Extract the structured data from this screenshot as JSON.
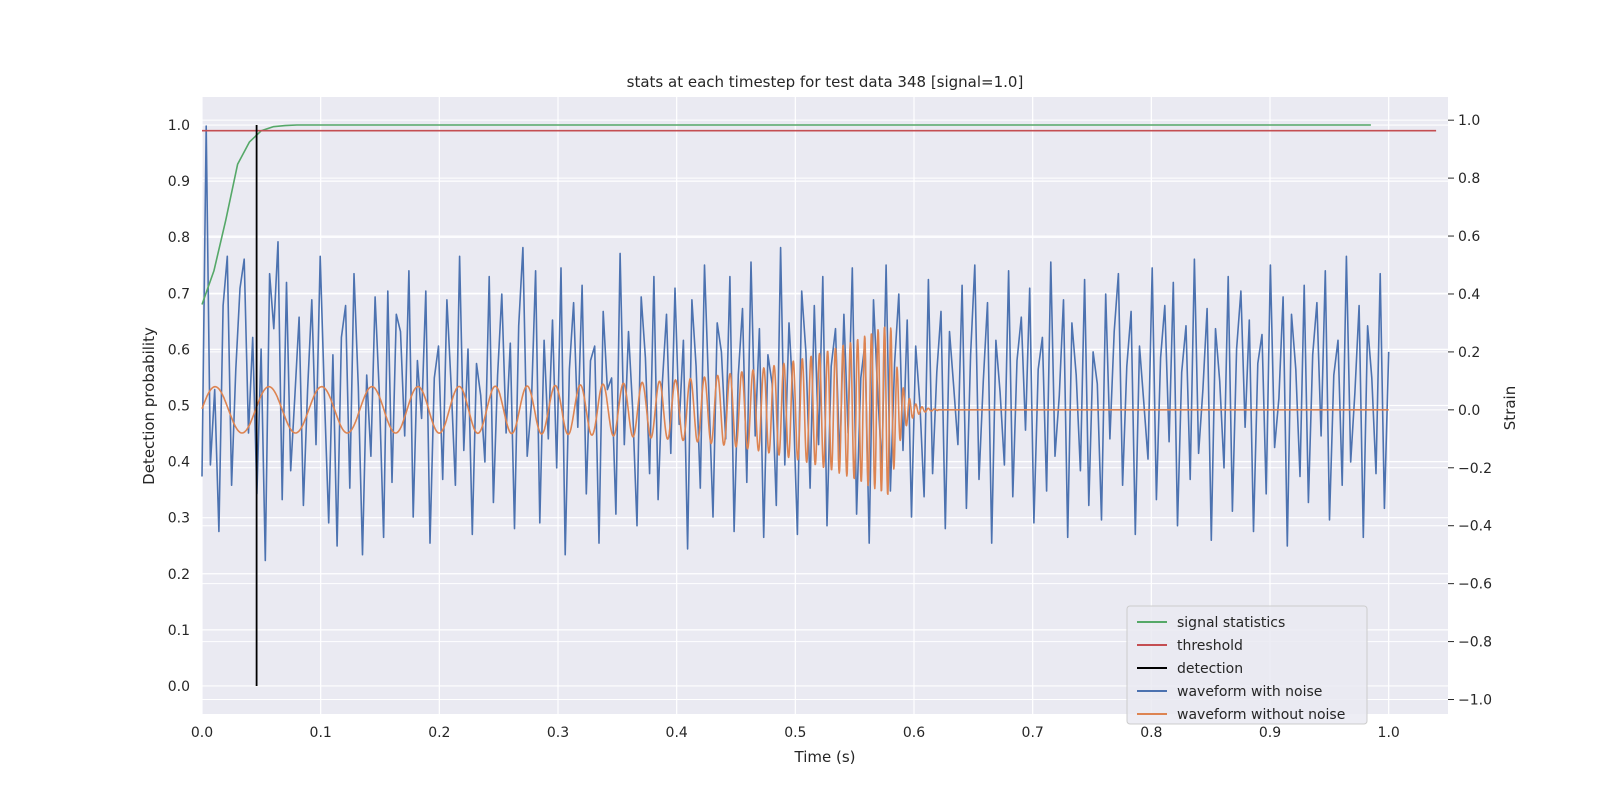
{
  "chart_data": {
    "type": "line",
    "title": "stats at each timestep for test data 348 [signal=1.0]",
    "xlabel": "Time (s)",
    "ylabel_left": "Detection probability",
    "ylabel_right": "Strain",
    "xlim": [
      0.0,
      1.05
    ],
    "ylim_left": [
      -0.05,
      1.05
    ],
    "ylim_right": [
      -1.05,
      1.08
    ],
    "xticks": [
      "0.0",
      "0.1",
      "0.2",
      "0.3",
      "0.4",
      "0.5",
      "0.6",
      "0.7",
      "0.8",
      "0.9",
      "1.0"
    ],
    "yticks_left": [
      "0.0",
      "0.1",
      "0.2",
      "0.3",
      "0.4",
      "0.5",
      "0.6",
      "0.7",
      "0.8",
      "0.9",
      "1.0"
    ],
    "yticks_right": [
      "−1.0",
      "−0.8",
      "−0.6",
      "−0.4",
      "−0.2",
      "0.0",
      "0.2",
      "0.4",
      "0.6",
      "0.8",
      "1.0"
    ],
    "grid": true,
    "legend_position": "lower-right",
    "colors": {
      "background": "#eaeaf2",
      "grid": "#ffffff",
      "signal": "#55a868",
      "threshold": "#c44e52",
      "detection": "#000000",
      "noisy": "#4c72b0",
      "clean": "#dd8452"
    },
    "series": [
      {
        "name": "signal statistics",
        "axis": "left",
        "x": [
          0.0,
          0.01,
          0.02,
          0.03,
          0.04,
          0.05,
          0.06,
          0.07,
          0.08,
          0.1,
          0.3,
          0.5,
          0.7,
          0.9,
          0.985
        ],
        "y": [
          0.68,
          0.74,
          0.83,
          0.93,
          0.97,
          0.99,
          0.997,
          0.999,
          1.0,
          1.0,
          1.0,
          1.0,
          1.0,
          1.0,
          1.0
        ]
      },
      {
        "name": "threshold",
        "axis": "left",
        "x": [
          0.0,
          1.04
        ],
        "y": [
          0.99,
          0.99
        ]
      },
      {
        "name": "detection",
        "axis": "left",
        "x": [
          0.046,
          0.046
        ],
        "y": [
          0.0,
          1.0
        ]
      },
      {
        "name": "waveform with noise",
        "axis": "right",
        "x_range": [
          0.0,
          1.0
        ],
        "y": [
          -0.23,
          0.98,
          -0.19,
          0.07,
          -0.42,
          0.36,
          0.53,
          -0.26,
          0.14,
          0.42,
          0.52,
          -0.08,
          0.25,
          -0.29,
          0.21,
          -0.52,
          0.47,
          0.28,
          0.58,
          -0.31,
          0.44,
          -0.21,
          0.05,
          0.32,
          -0.33,
          0.07,
          0.38,
          -0.12,
          0.53,
          0.04,
          -0.39,
          0.19,
          -0.47,
          0.25,
          0.36,
          -0.27,
          0.47,
          0.08,
          -0.5,
          0.12,
          -0.16,
          0.39,
          0.05,
          -0.44,
          0.41,
          -0.25,
          0.33,
          0.27,
          -0.09,
          0.48,
          -0.37,
          0.17,
          -0.03,
          0.41,
          -0.46,
          0.11,
          0.22,
          -0.24,
          0.38,
          0.08,
          -0.26,
          0.53,
          -0.14,
          0.21,
          -0.43,
          0.16,
          0.05,
          -0.18,
          0.46,
          -0.32,
          0.12,
          0.4,
          -0.08,
          0.23,
          -0.41,
          0.29,
          0.56,
          -0.16,
          0.02,
          0.48,
          -0.39,
          0.24,
          -0.1,
          0.31,
          -0.2,
          0.49,
          -0.5,
          0.14,
          0.37,
          -0.06,
          0.43,
          -0.29,
          0.17,
          0.22,
          -0.46,
          0.34,
          0.07,
          0.11,
          -0.36,
          0.54,
          -0.12,
          0.27,
          0.0,
          -0.4,
          0.39,
          0.18,
          -0.22,
          0.46,
          -0.31,
          0.09,
          0.33,
          -0.15,
          0.42,
          -0.05,
          0.24,
          -0.48,
          0.38,
          0.15,
          -0.27,
          0.5,
          0.06,
          -0.37,
          0.3,
          0.2,
          -0.1,
          0.46,
          -0.42,
          0.12,
          0.35,
          -0.25,
          0.51,
          -0.09,
          0.28,
          -0.44,
          0.19,
          0.09,
          -0.33,
          0.56,
          -0.19,
          0.3,
          0.03,
          -0.43,
          0.41,
          0.2,
          -0.27,
          0.36,
          -0.12,
          0.46,
          -0.4,
          0.15,
          0.28,
          -0.18,
          0.33,
          -0.08,
          0.49,
          -0.36,
          0.11,
          0.23,
          -0.46,
          0.38,
          0.06,
          -0.2,
          0.5,
          -0.28,
          0.16,
          0.4,
          -0.14,
          0.31,
          -0.37,
          0.22,
          0.02,
          -0.3,
          0.45,
          -0.22,
          0.13,
          0.34,
          -0.41,
          0.27,
          0.08,
          -0.12,
          0.43,
          -0.34,
          0.19,
          0.5,
          -0.24,
          0.1,
          0.37,
          -0.46,
          0.24,
          0.06,
          -0.19,
          0.48,
          -0.3,
          0.17,
          0.32,
          -0.07,
          0.42,
          -0.39,
          0.14,
          0.25,
          -0.28,
          0.51,
          -0.16,
          0.05,
          0.38,
          -0.44,
          0.3,
          0.12,
          -0.21,
          0.45,
          -0.33,
          0.2,
          0.09,
          -0.38,
          0.4,
          -0.1,
          0.27,
          0.47,
          -0.26,
          0.15,
          0.34,
          -0.43,
          0.22,
          0.03,
          -0.17,
          0.49,
          -0.31,
          0.18,
          0.36,
          -0.11,
          0.44,
          -0.4,
          0.13,
          0.29,
          -0.24,
          0.52,
          -0.15,
          0.07,
          0.35,
          -0.45,
          0.28,
          0.1,
          -0.2,
          0.46,
          -0.35,
          0.21,
          0.41,
          -0.06,
          0.31,
          -0.42,
          0.16,
          0.26,
          -0.29,
          0.5,
          -0.13,
          0.04,
          0.39,
          -0.47,
          0.33,
          0.14,
          -0.23,
          0.43,
          -0.32,
          0.19,
          0.37,
          -0.09,
          0.48,
          -0.38,
          0.12,
          0.24,
          -0.26,
          0.53,
          -0.18,
          0.06,
          0.36,
          -0.44,
          0.29,
          0.11,
          -0.22,
          0.47,
          -0.34,
          0.2
        ]
      },
      {
        "name": "waveform without noise",
        "axis": "right",
        "model": {
          "amplitude_start": 0.08,
          "amplitude_peak": 0.3,
          "merger_time": 0.58,
          "ringdown_end": 0.62,
          "cycles_per_second_start": 22,
          "cycles_per_second_end": 190
        }
      }
    ]
  }
}
